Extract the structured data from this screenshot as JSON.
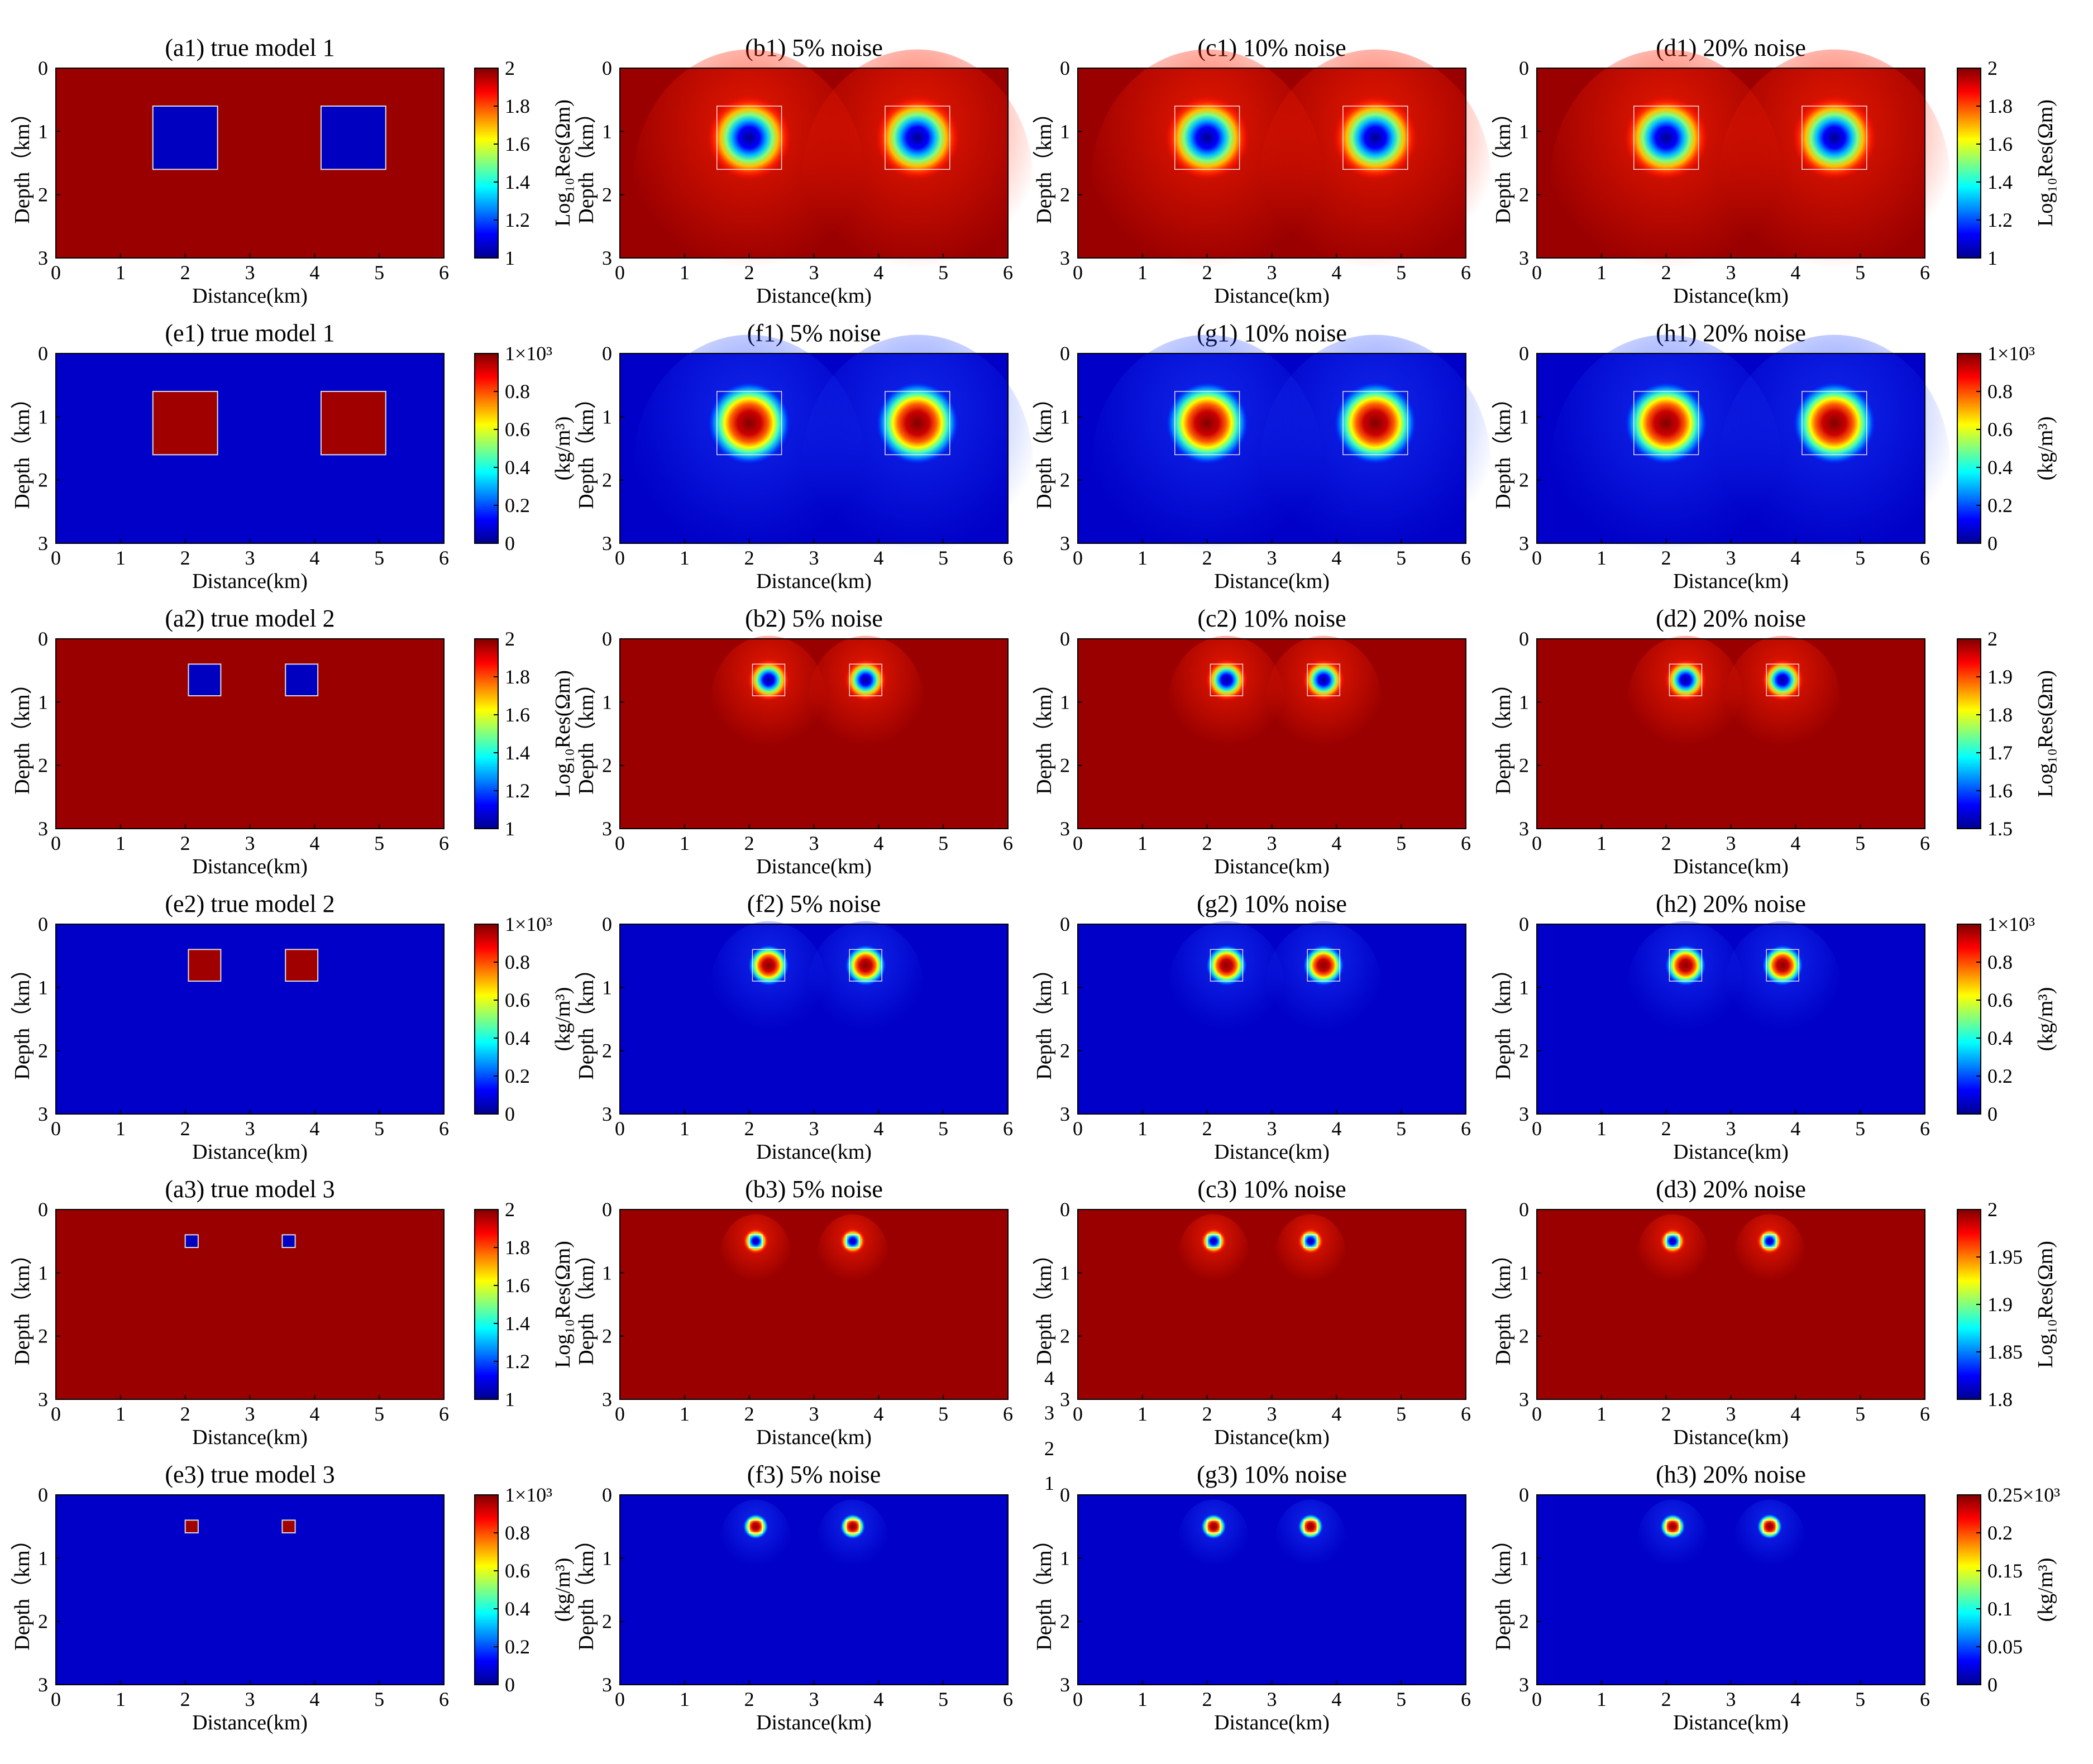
{
  "chart_data": {
    "type": "heatmap",
    "description_of_layout": "6 rows x 4 columns of depth sections",
    "x_axis": {
      "label": "Distance(km)",
      "ticks": [
        "0",
        "1",
        "2",
        "3",
        "4",
        "5",
        "6"
      ],
      "range": [
        0,
        6
      ]
    },
    "y_axis": {
      "label": "Depth（km）",
      "ticks": [
        "0",
        "1",
        "2",
        "3"
      ],
      "range": [
        0,
        3
      ]
    },
    "colormap": [
      "#00008f",
      "#0000ff",
      "#0080ff",
      "#00ffff",
      "#80ff80",
      "#ffff00",
      "#ff8000",
      "#ff0000",
      "#800000"
    ],
    "rows": [
      {
        "quantity": "resistivity",
        "panels": [
          {
            "title": "(a1) true model 1",
            "kind": "true",
            "size": 1.0,
            "depth": 1.1,
            "xs": [
              2.0,
              4.6
            ]
          },
          {
            "title": "(b1) 5% noise",
            "kind": "inv",
            "size": 1.0,
            "depth": 1.1,
            "xs": [
              2.0,
              4.6
            ]
          },
          {
            "title": "(c1)  10% noise",
            "kind": "inv",
            "size": 1.0,
            "depth": 1.1,
            "xs": [
              2.0,
              4.6
            ]
          },
          {
            "title": "(d1) 20% noise",
            "kind": "inv",
            "size": 1.0,
            "depth": 1.1,
            "xs": [
              2.0,
              4.6
            ]
          }
        ],
        "colorbar_left": {
          "ticks": [
            "2",
            "1.8",
            "1.6",
            "1.4",
            "1.2",
            "1"
          ],
          "label": "Log₁₀Res(Ωm)"
        },
        "colorbar_right": {
          "ticks": [
            "2",
            "1.8",
            "1.6",
            "1.4",
            "1.2",
            "1"
          ],
          "label": "Log₁₀Res(Ωm)"
        }
      },
      {
        "quantity": "density",
        "panels": [
          {
            "title": "(e1) true model 1",
            "kind": "true",
            "size": 1.0,
            "depth": 1.1,
            "xs": [
              2.0,
              4.6
            ]
          },
          {
            "title": "(f1) 5% noise",
            "kind": "inv",
            "size": 1.0,
            "depth": 1.1,
            "xs": [
              2.0,
              4.6
            ]
          },
          {
            "title": "(g1)   10% noise",
            "kind": "inv",
            "size": 1.0,
            "depth": 1.1,
            "xs": [
              2.0,
              4.6
            ]
          },
          {
            "title": "(h1) 20% noise",
            "kind": "inv",
            "size": 1.0,
            "depth": 1.1,
            "xs": [
              2.0,
              4.6
            ]
          }
        ],
        "colorbar_left": {
          "ticks": [
            "1×10³",
            "0.8",
            "0.6",
            "0.4",
            "0.2",
            "0"
          ],
          "label": "(kg/m³)"
        },
        "colorbar_right": {
          "ticks": [
            "1×10³",
            "0.8",
            "0.6",
            "0.4",
            "0.2",
            "0"
          ],
          "label": "(kg/m³)"
        }
      },
      {
        "quantity": "resistivity",
        "panels": [
          {
            "title": "(a2) true model 2",
            "kind": "true",
            "size": 0.5,
            "depth": 0.65,
            "xs": [
              2.3,
              3.8
            ]
          },
          {
            "title": "(b2) 5% noise",
            "kind": "inv",
            "size": 0.5,
            "depth": 0.65,
            "xs": [
              2.3,
              3.8
            ]
          },
          {
            "title": "(c2)  10% noise",
            "kind": "inv",
            "size": 0.5,
            "depth": 0.65,
            "xs": [
              2.3,
              3.8
            ]
          },
          {
            "title": "(d2) 20% noise",
            "kind": "inv",
            "size": 0.5,
            "depth": 0.65,
            "xs": [
              2.3,
              3.8
            ]
          }
        ],
        "colorbar_left": {
          "ticks": [
            "2",
            "1.8",
            "1.6",
            "1.4",
            "1.2",
            "1"
          ],
          "label": "Log₁₀Res(Ωm)"
        },
        "colorbar_right": {
          "ticks": [
            "2",
            "1.9",
            "1.8",
            "1.7",
            "1.6",
            "1.5"
          ],
          "label": "Log₁₀Res(Ωm)"
        }
      },
      {
        "quantity": "density",
        "panels": [
          {
            "title": "(e2) true model 2",
            "kind": "true",
            "size": 0.5,
            "depth": 0.65,
            "xs": [
              2.3,
              3.8
            ]
          },
          {
            "title": "(f2) 5% noise",
            "kind": "inv",
            "size": 0.5,
            "depth": 0.65,
            "xs": [
              2.3,
              3.8
            ]
          },
          {
            "title": "(g2)   10% noise",
            "kind": "inv",
            "size": 0.5,
            "depth": 0.65,
            "xs": [
              2.3,
              3.8
            ]
          },
          {
            "title": "(h2) 20% noise",
            "kind": "inv",
            "size": 0.5,
            "depth": 0.65,
            "xs": [
              2.3,
              3.8
            ]
          }
        ],
        "colorbar_left": {
          "ticks": [
            "1×10³",
            "0.8",
            "0.6",
            "0.4",
            "0.2",
            "0"
          ],
          "label": "(kg/m³)"
        },
        "colorbar_right": {
          "ticks": [
            "1×10³",
            "0.8",
            "0.6",
            "0.4",
            "0.2",
            "0"
          ],
          "label": "(kg/m³)"
        }
      },
      {
        "quantity": "resistivity",
        "panels": [
          {
            "title": "(a3) true model 3",
            "kind": "true",
            "size": 0.2,
            "depth": 0.5,
            "xs": [
              2.1,
              3.6
            ]
          },
          {
            "title": "(b3) 5% noise",
            "kind": "inv",
            "size": 0.2,
            "depth": 0.5,
            "xs": [
              2.1,
              3.6
            ]
          },
          {
            "title": "(c3)  10% noise",
            "kind": "inv",
            "size": 0.2,
            "depth": 0.5,
            "xs": [
              2.1,
              3.6
            ]
          },
          {
            "title": "(d3) 20% noise",
            "kind": "inv",
            "size": 0.2,
            "depth": 0.5,
            "xs": [
              2.1,
              3.6
            ]
          }
        ],
        "colorbar_left": {
          "ticks": [
            "2",
            "1.8",
            "1.6",
            "1.4",
            "1.2",
            "1"
          ],
          "label": "Log₁₀Res(Ωm)"
        },
        "colorbar_right": {
          "ticks": [
            "2",
            "1.95",
            "1.9",
            "1.85",
            "1.8"
          ],
          "label": "Log₁₀Res(Ωm)"
        }
      },
      {
        "quantity": "density",
        "panels": [
          {
            "title": "(e3) true model 3",
            "kind": "true",
            "size": 0.2,
            "depth": 0.5,
            "xs": [
              2.1,
              3.6
            ]
          },
          {
            "title": "(f3) 5% noise",
            "kind": "inv",
            "size": 0.2,
            "depth": 0.5,
            "xs": [
              2.1,
              3.6
            ]
          },
          {
            "title": "(g3)   10% noise",
            "kind": "inv",
            "size": 0.2,
            "depth": 0.5,
            "xs": [
              2.1,
              3.6
            ]
          },
          {
            "title": "(h3) 20% noise",
            "kind": "inv",
            "size": 0.2,
            "depth": 0.5,
            "xs": [
              2.1,
              3.6
            ]
          }
        ],
        "colorbar_left": {
          "ticks": [
            "1×10³",
            "0.8",
            "0.6",
            "0.4",
            "0.2",
            "0"
          ],
          "label": "(kg/m³)"
        },
        "colorbar_right": {
          "ticks": [
            "0.25×10³",
            "0.2",
            "0.15",
            "0.1",
            "0.05",
            "0"
          ],
          "label": "(kg/m³)"
        }
      }
    ],
    "stray_labels": [
      "4",
      "3",
      "2",
      "1"
    ]
  }
}
